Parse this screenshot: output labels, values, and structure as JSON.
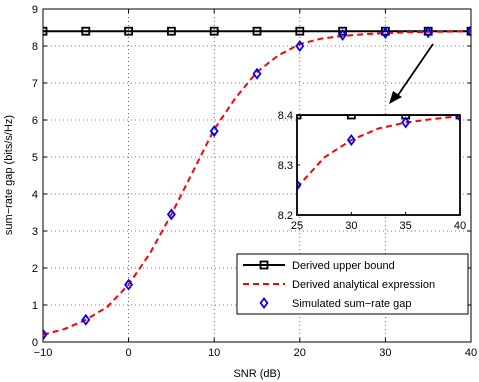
{
  "chart_data": [
    {
      "type": "line",
      "xlabel": "SNR (dB)",
      "ylabel": "sum−rate gap (bits/s/Hz)",
      "xlim": [
        -10,
        40
      ],
      "ylim": [
        0,
        9
      ],
      "xticks": [
        "−10",
        "0",
        "10",
        "20",
        "30",
        "40"
      ],
      "xtick_values": [
        -10,
        0,
        10,
        20,
        30,
        40
      ],
      "yticks": [
        "0",
        "1",
        "2",
        "3",
        "4",
        "5",
        "6",
        "7",
        "8",
        "9"
      ],
      "ytick_values": [
        0,
        1,
        2,
        3,
        4,
        5,
        6,
        7,
        8,
        9
      ],
      "grid": true,
      "legend_position": "bottom-right",
      "series": [
        {
          "name": "Derived upper bound",
          "color": "#000000",
          "style": "solid",
          "marker": "square",
          "x": [
            -10,
            -5,
            0,
            5,
            10,
            15,
            20,
            25,
            30,
            35,
            40
          ],
          "y": [
            8.4,
            8.4,
            8.4,
            8.4,
            8.4,
            8.4,
            8.4,
            8.4,
            8.4,
            8.4,
            8.4
          ]
        },
        {
          "name": "Derived analytical expression",
          "color": "#ff0000",
          "style": "dashed",
          "marker": "none",
          "x": [
            -10,
            -7.5,
            -5,
            -2.5,
            0,
            2.5,
            5,
            7.5,
            10,
            12.5,
            15,
            17.5,
            20,
            22.5,
            25,
            27.5,
            30,
            32.5,
            35,
            37.5,
            40
          ],
          "y": [
            0.2,
            0.35,
            0.6,
            0.95,
            1.55,
            2.4,
            3.45,
            4.6,
            5.75,
            6.6,
            7.3,
            7.75,
            8.05,
            8.2,
            8.27,
            8.32,
            8.35,
            8.37,
            8.38,
            8.39,
            8.4
          ]
        },
        {
          "name": "Simulated sum−rate gap",
          "color": "#0000ff",
          "style": "none",
          "marker": "diamond",
          "x": [
            -10,
            -5,
            0,
            5,
            10,
            15,
            20,
            25,
            30,
            35,
            40
          ],
          "y": [
            0.2,
            0.6,
            1.55,
            3.45,
            5.7,
            7.25,
            8.0,
            8.3,
            8.35,
            8.37,
            8.4
          ]
        }
      ]
    },
    {
      "type": "line",
      "xlim": [
        25,
        40
      ],
      "ylim": [
        8.2,
        8.4
      ],
      "xticks": [
        "25",
        "30",
        "35",
        "40"
      ],
      "xtick_values": [
        25,
        30,
        35,
        40
      ],
      "yticks": [
        "8.2",
        "8.3",
        "8.4"
      ],
      "ytick_values": [
        8.2,
        8.3,
        8.4
      ],
      "grid": false,
      "series": [
        {
          "color": "#000000",
          "style": "solid",
          "marker": "square",
          "x": [
            25,
            30,
            35,
            40
          ],
          "y": [
            8.4,
            8.4,
            8.4,
            8.4
          ]
        },
        {
          "color": "#ff0000",
          "style": "dashed",
          "marker": "none",
          "x": [
            25,
            27.5,
            30,
            32.5,
            35,
            37.5,
            40
          ],
          "y": [
            8.255,
            8.315,
            8.35,
            8.373,
            8.385,
            8.392,
            8.398
          ]
        },
        {
          "color": "#0000ff",
          "style": "none",
          "marker": "diamond",
          "x": [
            25,
            30,
            35,
            40
          ],
          "y": [
            8.26,
            8.35,
            8.385,
            8.398
          ]
        }
      ]
    }
  ]
}
